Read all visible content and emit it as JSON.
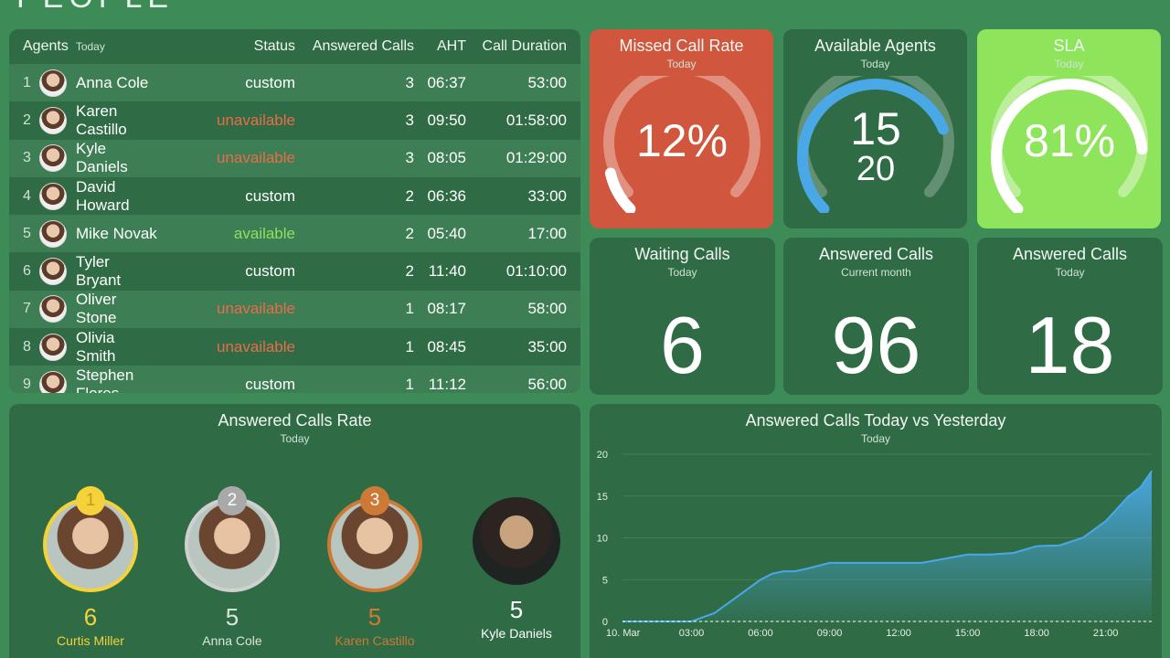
{
  "header": {
    "title": "PEOPLE"
  },
  "colors": {
    "background": "#3d8c57",
    "panel": "#2f6b44",
    "missed": "#d0573d",
    "sla": "#8ee45a",
    "gold": "#f5d23a",
    "silver": "#a9a9a9",
    "bronze": "#cc7a35",
    "unavailable": "#ea6b4a",
    "available": "#8fe060",
    "series_current": "#4aa8e6"
  },
  "agents_table": {
    "title": "Agents",
    "subtitle": "Today",
    "columns": {
      "status": "Status",
      "answered": "Answered Calls",
      "aht": "AHT",
      "duration": "Call Duration"
    },
    "rows": [
      {
        "num": "1",
        "name": "Anna Cole",
        "status": "custom",
        "answered": "3",
        "aht": "06:37",
        "duration": "53:00"
      },
      {
        "num": "2",
        "name": "Karen Castillo",
        "status": "unavailable",
        "answered": "3",
        "aht": "09:50",
        "duration": "01:58:00"
      },
      {
        "num": "3",
        "name": "Kyle Daniels",
        "status": "unavailable",
        "answered": "3",
        "aht": "08:05",
        "duration": "01:29:00"
      },
      {
        "num": "4",
        "name": "David Howard",
        "status": "custom",
        "answered": "2",
        "aht": "06:36",
        "duration": "33:00"
      },
      {
        "num": "5",
        "name": "Mike Novak",
        "status": "available",
        "answered": "2",
        "aht": "05:40",
        "duration": "17:00"
      },
      {
        "num": "6",
        "name": "Tyler Bryant",
        "status": "custom",
        "answered": "2",
        "aht": "11:40",
        "duration": "01:10:00"
      },
      {
        "num": "7",
        "name": "Oliver Stone",
        "status": "unavailable",
        "answered": "1",
        "aht": "08:17",
        "duration": "58:00"
      },
      {
        "num": "8",
        "name": "Olivia Smith",
        "status": "unavailable",
        "answered": "1",
        "aht": "08:45",
        "duration": "35:00"
      },
      {
        "num": "9",
        "name": "Stephen Flores",
        "status": "custom",
        "answered": "1",
        "aht": "11:12",
        "duration": "56:00"
      }
    ]
  },
  "missed": {
    "title": "Missed Call Rate",
    "subtitle": "Today",
    "value": "12%",
    "fraction": 0.12
  },
  "available": {
    "title": "Available Agents",
    "subtitle": "Today",
    "value": "15",
    "total": "20",
    "fraction": 0.75
  },
  "sla": {
    "title": "SLA",
    "subtitle": "Today",
    "value": "81%",
    "fraction": 0.81
  },
  "waiting": {
    "title": "Waiting Calls",
    "subtitle": "Today",
    "value": "6"
  },
  "answered_month": {
    "title": "Answered Calls",
    "subtitle": "Current month",
    "value": "96"
  },
  "answered_today": {
    "title": "Answered Calls",
    "subtitle": "Today",
    "value": "18"
  },
  "rate": {
    "title": "Answered Calls Rate",
    "subtitle": "Today",
    "leaders": [
      {
        "rank": "1",
        "score": "6",
        "name": "Curtis Miller"
      },
      {
        "rank": "2",
        "score": "5",
        "name": "Anna Cole"
      },
      {
        "rank": "3",
        "score": "5",
        "name": "Karen Castillo"
      },
      {
        "rank": "",
        "score": "5",
        "name": "Kyle Daniels"
      }
    ]
  },
  "chart_data": {
    "type": "area",
    "title": "Answered Calls Today vs Yesterday",
    "subtitle": "Today",
    "x_ticks": [
      "10. Mar",
      "03:00",
      "06:00",
      "09:00",
      "12:00",
      "15:00",
      "18:00",
      "21:00"
    ],
    "y_ticks": [
      "0",
      "5",
      "10",
      "15",
      "20"
    ],
    "ylim": [
      0,
      20
    ],
    "x_hours": [
      0,
      1,
      2,
      3,
      4,
      5,
      5.5,
      6,
      6.5,
      7,
      7.5,
      8,
      9,
      10,
      11,
      12,
      13,
      14,
      15,
      16,
      17,
      18,
      19,
      20,
      21,
      21.5,
      22,
      22.5,
      23
    ],
    "series": [
      {
        "values": [
          0,
          0,
          0,
          0,
          1,
          3,
          4,
          5,
          5.7,
          6,
          6,
          6.3,
          7,
          7,
          7,
          7,
          7,
          7.5,
          8,
          8,
          8.2,
          9,
          9.1,
          10,
          12,
          13.5,
          15,
          16,
          18
        ]
      }
    ]
  }
}
